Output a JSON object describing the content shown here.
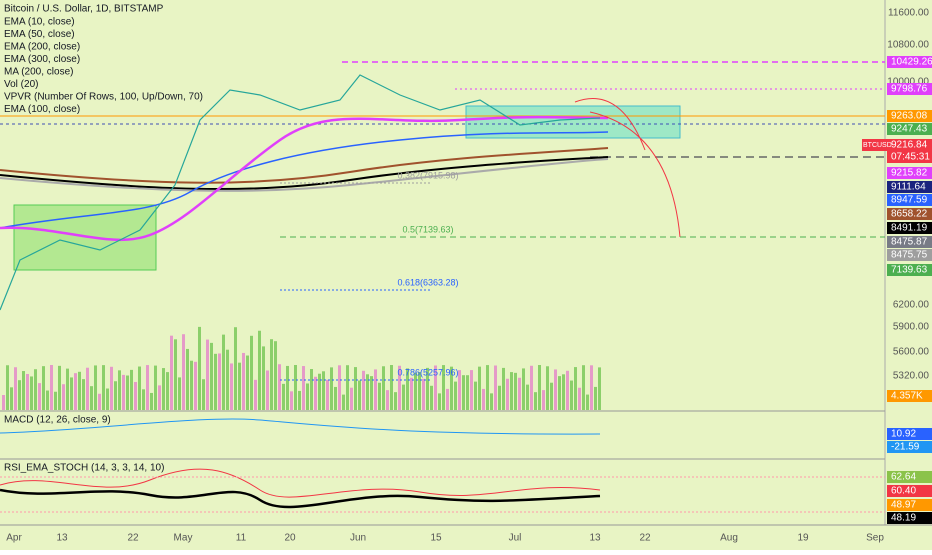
{
  "header": {
    "title": "Bitcoin / U.S. Dollar, 1D, BITSTAMP"
  },
  "indicators": [
    "EMA (10, close)",
    "EMA (50, close)",
    "EMA (200, close)",
    "EMA (300, close)",
    "MA (200, close)",
    "Vol (20)",
    "VPVR (Number Of Rows, 100, Up/Down, 70)",
    "EMA (100, close)"
  ],
  "price_axis": [
    "11600.00",
    "10800.00",
    "10000.00",
    "6200.00",
    "5900.00",
    "5600.00",
    "5320.00"
  ],
  "price_tags": [
    {
      "label": "10429.26",
      "color": "#e040fb"
    },
    {
      "label": "9798.76",
      "color": "#e040fb"
    },
    {
      "label": "9263.08",
      "color": "#ff9800"
    },
    {
      "label": "9247.43",
      "color": "#4caf50"
    },
    {
      "symbol": "BTCUSD",
      "label": "9216.84",
      "color": "#f23645"
    },
    {
      "label": "07:45:31",
      "color": "#f23645"
    },
    {
      "label": "9215.82",
      "color": "#e040fb"
    },
    {
      "label": "9111.64",
      "color": "#1a237e"
    },
    {
      "label": "8947.59",
      "color": "#2962ff"
    },
    {
      "label": "8658.22",
      "color": "#a0522d"
    },
    {
      "label": "8491.19",
      "color": "#000000"
    },
    {
      "label": "8475.87",
      "color": "#787b86"
    },
    {
      "label": "8475.75",
      "color": "#9e9e9e"
    },
    {
      "label": "7139.63",
      "color": "#4caf50"
    },
    {
      "label": "4.357K",
      "color": "#ff9800"
    },
    {
      "label": "10.92",
      "color": "#2962ff"
    },
    {
      "label": "-21.59",
      "color": "#2196f3"
    },
    {
      "label": "62.64",
      "color": "#8bc34a"
    },
    {
      "label": "60.40",
      "color": "#f23645"
    },
    {
      "label": "48.97",
      "color": "#ff9800"
    },
    {
      "label": "48.19",
      "color": "#000000"
    }
  ],
  "fib_levels": [
    {
      "label": "0.382(7915.98)",
      "color": "#9e9e9e"
    },
    {
      "label": "0.5(7139.63)",
      "color": "#4caf50"
    },
    {
      "label": "0.618(6363.28)",
      "color": "#2962ff"
    },
    {
      "label": "0.786(5257.96)",
      "color": "#2962ff"
    }
  ],
  "panes": {
    "macd": {
      "label": "MACD (12, 26, close, 9)"
    },
    "rsi": {
      "label": "RSI_EMA_STOCH (14, 3, 3, 14, 10)"
    }
  },
  "date_axis": [
    "Apr",
    "13",
    "22",
    "May",
    "11",
    "20",
    "Jun",
    "15",
    "Jul",
    "13",
    "22",
    "Aug",
    "19",
    "Sep"
  ]
}
